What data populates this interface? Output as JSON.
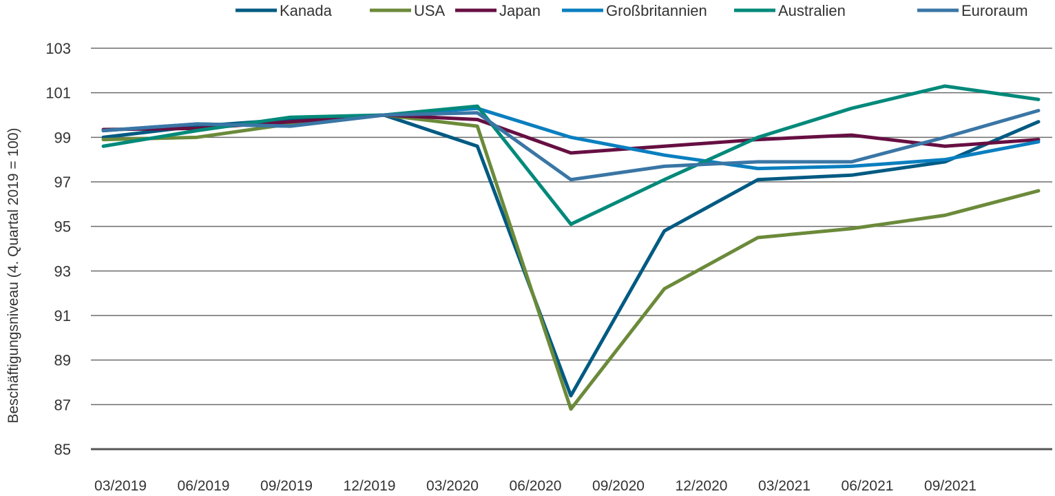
{
  "chart_data": {
    "type": "line",
    "title": "",
    "xlabel": "",
    "ylabel": "Beschäftigungsniveau (4. Quartal 2019 = 100)",
    "ylim": [
      85,
      103
    ],
    "yticks": [
      85,
      87,
      89,
      91,
      93,
      95,
      97,
      99,
      101,
      103
    ],
    "xtick_labels": [
      "03/2019",
      "06/2019",
      "09/2019",
      "12/2019",
      "03/2020",
      "06/2020",
      "09/2020",
      "12/2020",
      "03/2021",
      "06/2021",
      "09/2021"
    ],
    "grid": "horizontal",
    "legend_position": "top",
    "series": [
      {
        "name": "Kanada",
        "color": "#005a82",
        "values": [
          99.0,
          99.5,
          99.8,
          100,
          98.6,
          87.4,
          94.8,
          97.1,
          97.3,
          97.9,
          99.7
        ]
      },
      {
        "name": "USA",
        "color": "#6b8a3a",
        "values": [
          98.9,
          99.0,
          99.6,
          100,
          99.5,
          86.8,
          92.2,
          94.5,
          94.9,
          95.5,
          96.6
        ]
      },
      {
        "name": "Japan",
        "color": "#660f42",
        "values": [
          99.35,
          99.4,
          99.7,
          100,
          99.8,
          98.3,
          98.6,
          98.9,
          99.1,
          98.6,
          98.9
        ]
      },
      {
        "name": "Großbritannien",
        "color": "#0a7fbf",
        "values": [
          99.3,
          99.6,
          99.5,
          100,
          100.3,
          99.0,
          98.2,
          97.6,
          97.7,
          98.0,
          98.8
        ]
      },
      {
        "name": "Australien",
        "color": "#00897a",
        "values": [
          98.6,
          99.3,
          99.9,
          100,
          100.4,
          95.1,
          97.1,
          99.0,
          100.3,
          101.3,
          100.7
        ]
      },
      {
        "name": "Euroraum",
        "color": "#3a76a5",
        "values": [
          99.3,
          99.6,
          99.5,
          100,
          100.1,
          97.1,
          97.7,
          97.9,
          97.9,
          99.0,
          100.2
        ]
      }
    ]
  }
}
